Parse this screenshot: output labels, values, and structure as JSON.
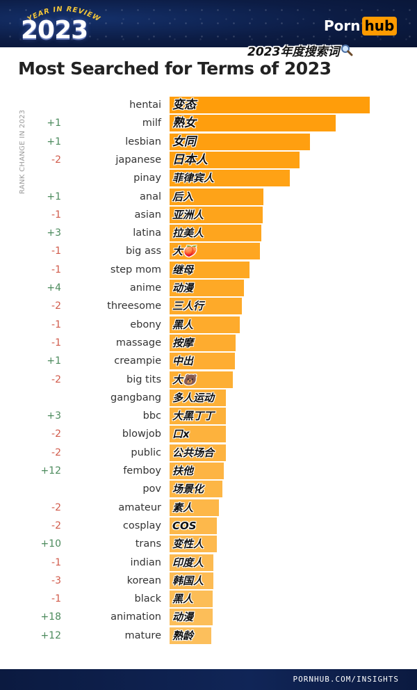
{
  "header": {
    "badge_arc": "YEAR IN REVIEW",
    "badge_year": "2023",
    "logo_part1": "Porn",
    "logo_part2": "hub",
    "accent_color": "#ff9b00"
  },
  "cn_title": "2023年度搜索词",
  "cn_title_icon": "magnifier-icon",
  "title": "Most Searched for Terms of 2023",
  "rank_change_label": "RANK CHANGE IN 2023",
  "footer": {
    "url": "PORNHUB.COM/INSIGHTS"
  },
  "chart_data": {
    "type": "bar",
    "orientation": "horizontal",
    "title": "Most Searched for Terms of 2023",
    "ylabel": "RANK CHANGE IN 2023",
    "colors": {
      "top": "#ff9d0a",
      "bottom": "#fcbf5c"
    },
    "categories": [
      "hentai",
      "milf",
      "lesbian",
      "japanese",
      "pinay",
      "anal",
      "asian",
      "latina",
      "big ass",
      "step mom",
      "anime",
      "threesome",
      "ebony",
      "massage",
      "creampie",
      "big tits",
      "gangbang",
      "bbc",
      "blowjob",
      "public",
      "femboy",
      "pov",
      "amateur",
      "cosplay",
      "trans",
      "indian",
      "korean",
      "black",
      "animation",
      "mature"
    ],
    "cn_labels": [
      "变态",
      "熟女",
      "女同",
      "日本人",
      "菲律宾人",
      "后入",
      "亚洲人",
      "拉美人",
      "大🍑",
      "继母",
      "动漫",
      "三人行",
      "黑人",
      "按摩",
      "中出",
      "大🐻",
      "多人运动",
      "大黑丁丁",
      "口x",
      "公共场合",
      "扶他",
      "场景化",
      "素人",
      "COS",
      "变性人",
      "印度人",
      "韩国人",
      "黑人",
      "动漫",
      "熟龄"
    ],
    "rank_change": [
      "",
      "+1",
      "+1",
      "-2",
      "",
      "+1",
      "-1",
      "+3",
      "-1",
      "-1",
      "+4",
      "-2",
      "-1",
      "-1",
      "+1",
      "-2",
      "",
      "+3",
      "-2",
      "-2",
      "+12",
      "",
      "-2",
      "-2",
      "+10",
      "-1",
      "-3",
      "-1",
      "+18",
      "+12"
    ],
    "values": [
      100,
      83,
      70,
      65,
      60,
      47,
      46.5,
      46,
      45,
      40,
      37,
      36,
      35,
      33,
      32.5,
      31.5,
      28,
      28,
      28,
      28,
      27,
      26.5,
      24.5,
      23.5,
      23.5,
      22,
      22,
      21.5,
      21.5,
      21
    ],
    "xlim": [
      0,
      100
    ],
    "grid": false,
    "legend": "none"
  }
}
